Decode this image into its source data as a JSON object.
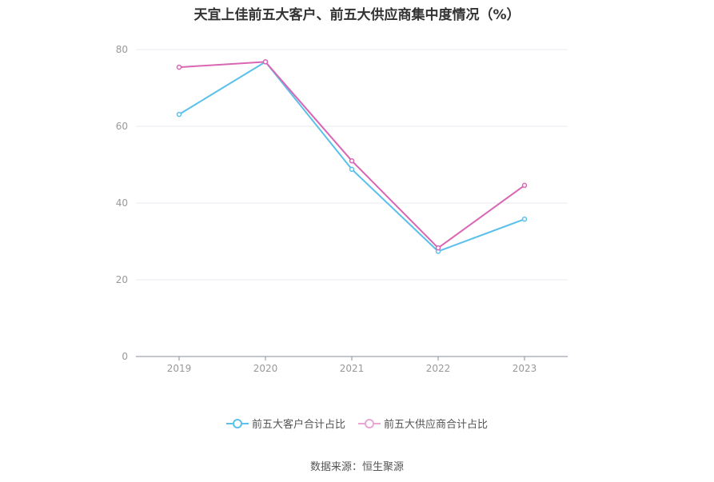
{
  "chart_data": {
    "type": "line",
    "title": "天宜上佳前五大客户、前五大供应商集中度情况（%）",
    "categories": [
      "2019",
      "2020",
      "2021",
      "2022",
      "2023"
    ],
    "series": [
      {
        "name": "前五大客户合计占比",
        "color": "#5bc0eb",
        "values": [
          63.1,
          76.8,
          48.8,
          27.4,
          35.8
        ]
      },
      {
        "name": "前五大供应商合计占比",
        "color": "#d966b3",
        "values": [
          75.4,
          76.8,
          51.0,
          28.3,
          44.6
        ]
      }
    ],
    "yticks": [
      "0",
      "20",
      "40",
      "60",
      "80"
    ],
    "ylim": [
      0,
      80
    ],
    "grid": true,
    "legend_position": "bottom"
  },
  "source": "数据来源：恒生聚源"
}
